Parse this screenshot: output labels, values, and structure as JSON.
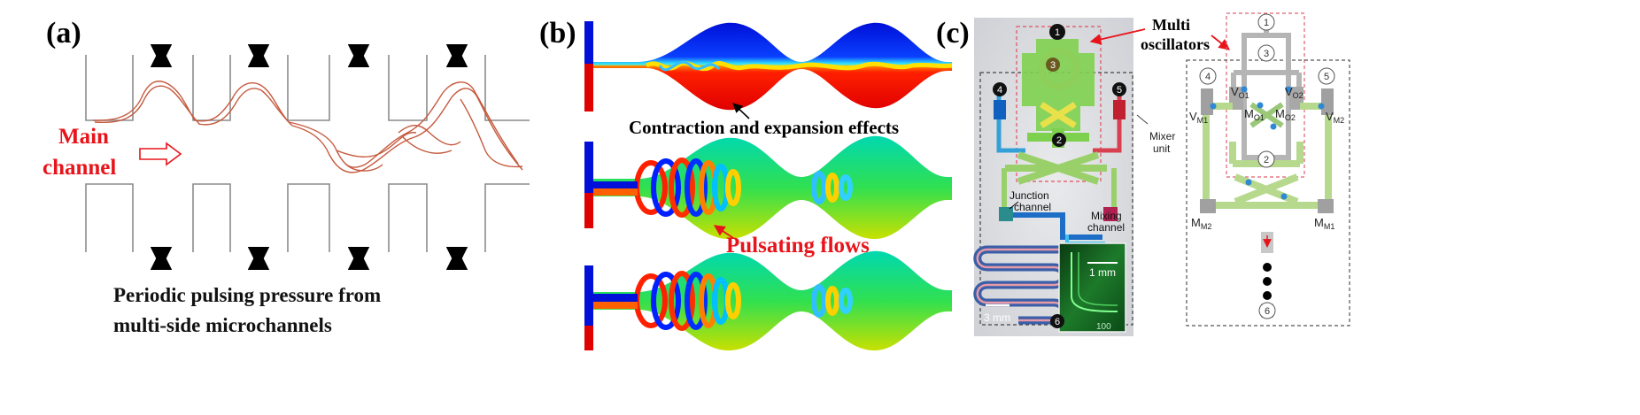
{
  "panel_a": {
    "label": "(a)",
    "main_channel_line1": "Main",
    "main_channel_line2": "channel",
    "caption_line1": "Periodic pulsing pressure from",
    "caption_line2": "multi-side microchannels"
  },
  "panel_b": {
    "label": "(b)",
    "annotation1": "Contraction and expansion effects",
    "annotation2": "Pulsating flows"
  },
  "panel_c": {
    "label": "(c)",
    "multi_line1": "Multi",
    "multi_line2": "oscillators",
    "mixer_line1": "Mixer",
    "mixer_line2": "unit",
    "junction_line1": "Junction",
    "junction_line2": "channel",
    "mixing_line1": "Mixing",
    "mixing_line2": "channel",
    "scale_inset": "1 mm",
    "scale_main": "3 mm",
    "photo_numbers": [
      "1",
      "2",
      "3",
      "4",
      "5",
      "6"
    ],
    "schem_numbers": [
      "1",
      "2",
      "3",
      "4",
      "5",
      "6"
    ],
    "labels": {
      "vo1": "V",
      "vo1_sub": "O1",
      "vo2": "V",
      "vo2_sub": "O2",
      "mo1": "M",
      "mo1_sub": "O1",
      "mo2": "M",
      "mo2_sub": "O2",
      "vm1": "V",
      "vm1_sub": "M1",
      "vm2": "V",
      "vm2_sub": "M2",
      "mm2": "M",
      "mm2_sub": "M2",
      "mm1": "M",
      "mm1_sub": "M1"
    },
    "photo_stamp": "100"
  },
  "colors": {
    "red": "#e8141b",
    "blue": "#0a1be6",
    "green": "#7ed04f",
    "channel_green": "#b6d98d",
    "gray": "#9a9a9a"
  }
}
